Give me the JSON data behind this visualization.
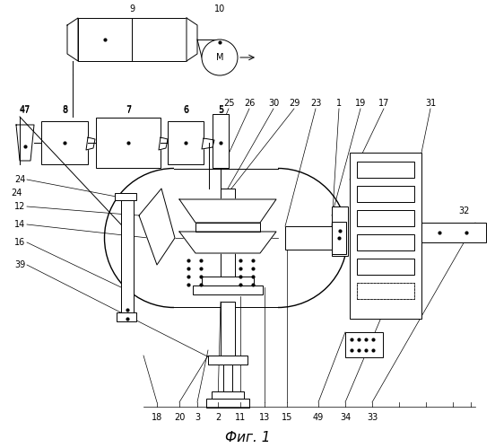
{
  "title": "Фиг. 1",
  "bg_color": "#ffffff",
  "line_color": "#000000",
  "fig_width": 5.52,
  "fig_height": 4.99,
  "dpi": 100
}
